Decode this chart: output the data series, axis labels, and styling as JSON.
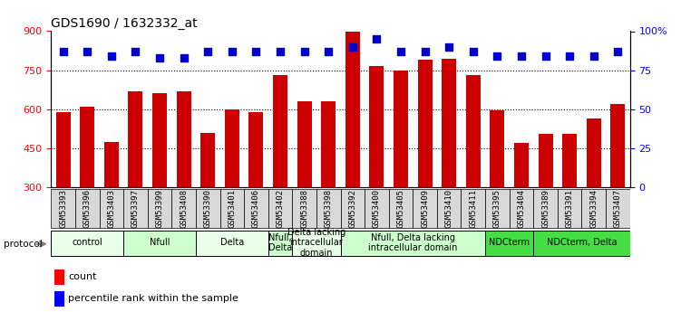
{
  "title": "GDS1690 / 1632332_at",
  "samples": [
    "GSM53393",
    "GSM53396",
    "GSM53403",
    "GSM53397",
    "GSM53399",
    "GSM53408",
    "GSM53390",
    "GSM53401",
    "GSM53406",
    "GSM53402",
    "GSM53388",
    "GSM53398",
    "GSM53392",
    "GSM53400",
    "GSM53405",
    "GSM53409",
    "GSM53410",
    "GSM53411",
    "GSM53395",
    "GSM53404",
    "GSM53389",
    "GSM53391",
    "GSM53394",
    "GSM53407"
  ],
  "counts": [
    590,
    610,
    475,
    670,
    660,
    670,
    510,
    600,
    590,
    730,
    630,
    630,
    900,
    765,
    750,
    790,
    795,
    730,
    595,
    470,
    505,
    505,
    565,
    620
  ],
  "percentiles": [
    87,
    87,
    84,
    87,
    83,
    83,
    87,
    87,
    87,
    87,
    87,
    87,
    90,
    95,
    87,
    87,
    90,
    87,
    84,
    84,
    84,
    84,
    84,
    87
  ],
  "bar_color": "#cc0000",
  "dot_color": "#0000cc",
  "ylim_left": [
    300,
    900
  ],
  "ylim_right": [
    0,
    100
  ],
  "yticks_left": [
    300,
    450,
    600,
    750,
    900
  ],
  "yticks_right": [
    0,
    25,
    50,
    75,
    100
  ],
  "ylabel_right_labels": [
    "0",
    "25",
    "50",
    "75",
    "100%"
  ],
  "grid_values": [
    450,
    600,
    750
  ],
  "protocol_groups": [
    {
      "label": "control",
      "start": 0,
      "end": 2,
      "color": "#e8ffe8"
    },
    {
      "label": "Nfull",
      "start": 3,
      "end": 5,
      "color": "#ccffcc"
    },
    {
      "label": "Delta",
      "start": 6,
      "end": 8,
      "color": "#e8ffe8"
    },
    {
      "label": "Nfull,\nDelta",
      "start": 9,
      "end": 9,
      "color": "#ccffcc"
    },
    {
      "label": "Delta lacking\nintracellular\ndomain",
      "start": 10,
      "end": 11,
      "color": "#e8ffe8"
    },
    {
      "label": "Nfull, Delta lacking\nintracellular domain",
      "start": 12,
      "end": 17,
      "color": "#ccffcc"
    },
    {
      "label": "NDCterm",
      "start": 18,
      "end": 19,
      "color": "#44dd44"
    },
    {
      "label": "NDCterm, Delta",
      "start": 20,
      "end": 23,
      "color": "#44dd44"
    }
  ],
  "bar_width": 0.6,
  "dot_size": 30,
  "dot_marker": "s",
  "xlabel_fontsize": 6.5,
  "title_fontsize": 10,
  "legend_fontsize": 8,
  "protocol_fontsize": 7,
  "tick_fontsize": 8
}
